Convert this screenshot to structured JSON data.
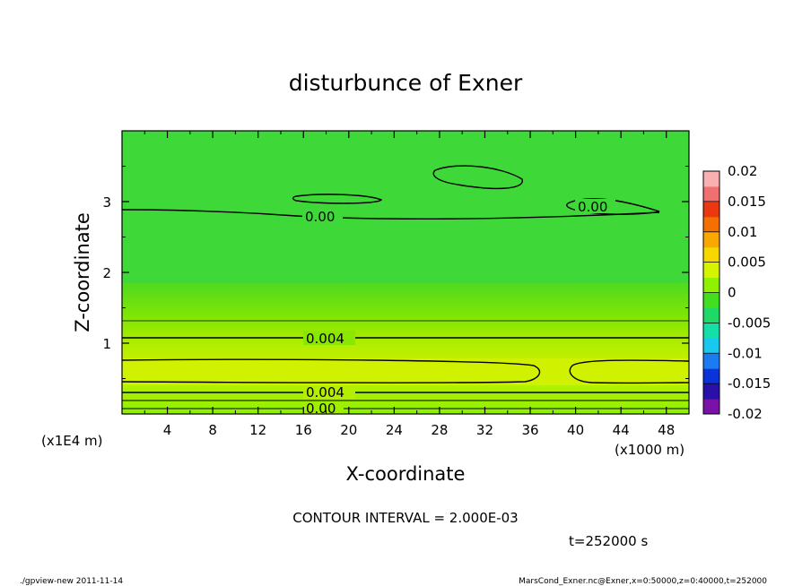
{
  "chart_data": {
    "type": "heatmap",
    "title": "disturbunce of Exner",
    "xlabel": "X-coordinate",
    "ylabel": "Z-coordinate",
    "x_ticks": [
      4,
      8,
      12,
      16,
      20,
      24,
      28,
      32,
      36,
      40,
      44,
      48
    ],
    "y_ticks": [
      1,
      2,
      3
    ],
    "xlim": [
      0,
      50
    ],
    "ylim": [
      0,
      4
    ],
    "x_unit": "(x1000 m)",
    "y_unit": "(x1E4 m)",
    "colorbar": {
      "ticks": [
        "0.02",
        "0.015",
        "0.01",
        "0.005",
        "0",
        "-0.005",
        "-0.01",
        "-0.015",
        "-0.02"
      ],
      "range": [
        -0.02,
        0.02
      ],
      "colors": [
        "#7a12a8",
        "#2a0fa8",
        "#0a33d8",
        "#1a7cf0",
        "#18c8ee",
        "#12e0a8",
        "#1ed868",
        "#42df20",
        "#8ef200",
        "#d6f400",
        "#f6d800",
        "#f8a800",
        "#f47000",
        "#ec3810",
        "#f07070",
        "#f8b0b0"
      ]
    },
    "contour_labels": [
      "0.00",
      "0.00",
      "0.004",
      "0.004",
      "0.00"
    ],
    "contour_interval": "CONTOUR INTERVAL = 2.000E-03",
    "time_label": "t=252000 s"
  },
  "footer": {
    "left": "./gpview-new  2011-11-14",
    "right": "MarsCond_Exner.nc@Exner,x=0:50000,z=0:40000,t=252000"
  }
}
